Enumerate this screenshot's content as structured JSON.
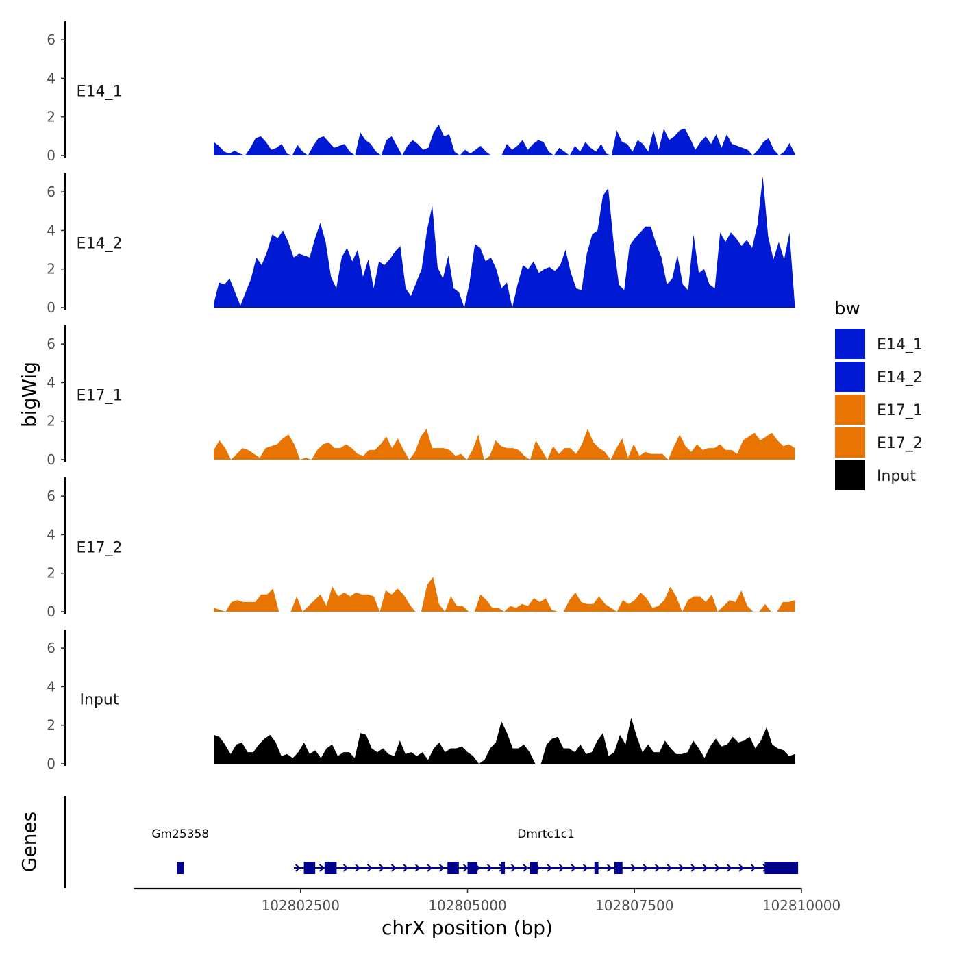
{
  "chart_data": {
    "type": "area",
    "xlabel": "chrX position (bp)",
    "ylabel": "bigWig",
    "genes_panel_label": "Genes",
    "x_range": [
      102800000,
      102810000
    ],
    "x_ticks": [
      102802500,
      102805000,
      102807500,
      102810000
    ],
    "x_tick_labels": [
      "102802500",
      "102805000",
      "102807500",
      "102810000"
    ],
    "y_range": [
      0,
      7
    ],
    "y_ticks": [
      0,
      2,
      4,
      6
    ],
    "y_tick_labels": [
      "0",
      "2",
      "4",
      "6"
    ],
    "legend": {
      "title": "bw",
      "items": [
        {
          "label": "E14_1",
          "color": "#0019D2"
        },
        {
          "label": "E14_2",
          "color": "#0019D2"
        },
        {
          "label": "E17_1",
          "color": "#E87502"
        },
        {
          "label": "E17_2",
          "color": "#E87502"
        },
        {
          "label": "Input",
          "color": "#000000"
        }
      ]
    },
    "tracks": [
      {
        "name": "E14_1",
        "color": "#0019D2",
        "values": [
          0.7,
          0.5,
          0.2,
          0.1,
          0.25,
          0.1,
          0.0,
          0.4,
          0.9,
          1.0,
          0.7,
          0.3,
          0.4,
          0.6,
          0.1,
          0.0,
          0.55,
          0.2,
          0.0,
          0.5,
          0.9,
          1.0,
          0.7,
          0.4,
          0.5,
          0.6,
          0.2,
          0.0,
          1.2,
          0.8,
          0.6,
          0.2,
          0.0,
          0.8,
          1.0,
          0.5,
          0.0,
          0.5,
          0.8,
          0.6,
          0.3,
          0.4,
          1.2,
          1.6,
          1.0,
          1.1,
          0.2,
          0.0,
          0.3,
          0.1,
          0.3,
          0.5,
          0.2,
          0.0,
          0.0,
          0.0,
          0.6,
          0.3,
          0.5,
          0.8,
          0.3,
          0.6,
          0.8,
          0.7,
          0.2,
          0.0,
          0.4,
          0.2,
          0.0,
          0.5,
          0.2,
          0.7,
          0.4,
          0.2,
          0.6,
          0.1,
          0.0,
          1.3,
          0.7,
          0.6,
          0.2,
          0.8,
          0.6,
          0.2,
          1.3,
          0.3,
          1.4,
          0.8,
          1.0,
          1.3,
          1.4,
          0.9,
          0.3,
          0.7,
          1.0,
          0.6,
          1.1,
          0.4,
          1.1,
          0.6,
          0.5,
          0.4,
          0.3,
          0.0,
          0.3,
          0.7,
          0.9,
          0.3,
          0.0,
          0.2,
          0.65,
          0.1
        ]
      },
      {
        "name": "E14_2",
        "color": "#0019D2",
        "values": [
          0.2,
          1.3,
          1.2,
          1.5,
          0.8,
          0.1,
          0.8,
          1.5,
          2.6,
          2.2,
          2.9,
          3.8,
          3.6,
          4.0,
          3.4,
          2.6,
          2.8,
          2.7,
          2.6,
          3.6,
          4.4,
          3.4,
          1.6,
          1.0,
          2.6,
          3.1,
          2.4,
          3.0,
          1.6,
          2.5,
          1.0,
          2.4,
          2.2,
          2.5,
          2.9,
          3.2,
          1.0,
          0.6,
          1.3,
          2.0,
          4.0,
          5.3,
          2.1,
          1.5,
          2.7,
          1.0,
          0.8,
          0.0,
          1.3,
          3.3,
          3.1,
          2.4,
          2.6,
          2.0,
          1.0,
          1.3,
          0.0,
          1.2,
          2.2,
          2.0,
          2.4,
          1.8,
          2.0,
          2.1,
          1.9,
          2.2,
          3.0,
          1.8,
          1.0,
          0.9,
          2.8,
          3.8,
          4.0,
          5.8,
          6.2,
          3.4,
          1.2,
          0.9,
          3.2,
          3.6,
          3.9,
          4.2,
          4.2,
          3.3,
          2.6,
          1.2,
          1.5,
          2.7,
          1.2,
          0.9,
          3.8,
          1.8,
          2.0,
          1.2,
          1.0,
          3.9,
          3.4,
          3.9,
          3.6,
          3.2,
          3.5,
          3.1,
          4.3,
          6.8,
          3.7,
          2.5,
          3.4,
          2.5,
          3.9,
          0.1
        ]
      },
      {
        "name": "E17_1",
        "color": "#E87502",
        "values": [
          0.5,
          1.0,
          0.6,
          0.0,
          0.3,
          0.6,
          0.5,
          0.3,
          0.1,
          0.6,
          0.7,
          0.8,
          1.1,
          1.3,
          0.8,
          0.0,
          0.1,
          0.0,
          0.5,
          0.8,
          0.9,
          0.6,
          0.6,
          0.8,
          0.6,
          0.3,
          0.2,
          0.5,
          0.5,
          0.8,
          1.2,
          0.6,
          1.1,
          0.5,
          0.0,
          0.4,
          1.2,
          1.6,
          0.6,
          0.6,
          0.6,
          0.5,
          0.2,
          0.3,
          0.0,
          0.5,
          1.3,
          0.0,
          0.2,
          1.0,
          0.7,
          0.6,
          0.6,
          0.5,
          0.2,
          0.0,
          1.0,
          0.5,
          0.0,
          0.7,
          0.3,
          0.6,
          0.6,
          0.3,
          0.8,
          1.6,
          0.9,
          0.6,
          0.4,
          0.0,
          0.6,
          1.1,
          0.1,
          0.8,
          0.2,
          0.4,
          0.3,
          0.3,
          0.3,
          0.0,
          0.7,
          1.3,
          0.7,
          0.4,
          0.8,
          0.5,
          0.6,
          0.6,
          0.8,
          0.5,
          0.5,
          0.3,
          1.0,
          1.2,
          1.4,
          1.0,
          1.2,
          1.4,
          1.0,
          0.7,
          0.8,
          0.6
        ]
      },
      {
        "name": "E17_2",
        "color": "#E87502",
        "values": [
          0.2,
          0.1,
          0.0,
          0.5,
          0.6,
          0.5,
          0.5,
          0.5,
          0.9,
          0.9,
          1.2,
          0.0,
          0.0,
          0.0,
          0.8,
          0.0,
          0.3,
          0.6,
          0.9,
          0.3,
          1.3,
          0.8,
          1.0,
          0.8,
          1.0,
          0.9,
          0.9,
          0.8,
          0.0,
          1.1,
          0.9,
          1.2,
          0.9,
          0.4,
          0.0,
          0.0,
          1.4,
          1.8,
          0.4,
          0.0,
          0.8,
          0.3,
          0.3,
          0.0,
          0.0,
          0.9,
          0.6,
          0.2,
          0.2,
          0.0,
          0.3,
          0.2,
          0.4,
          0.3,
          0.7,
          0.5,
          0.7,
          0.1,
          0.0,
          0.0,
          0.6,
          1.0,
          0.5,
          0.4,
          0.4,
          0.8,
          0.4,
          0.2,
          0.0,
          0.6,
          0.4,
          0.6,
          1.0,
          0.7,
          0.2,
          0.3,
          0.6,
          1.3,
          0.8,
          0.0,
          0.6,
          0.8,
          0.8,
          0.5,
          0.9,
          0.0,
          0.3,
          0.6,
          0.5,
          1.1,
          0.3,
          0.0,
          0.0,
          0.4,
          0.0,
          0.0,
          0.5,
          0.5,
          0.6
        ]
      },
      {
        "name": "Input",
        "color": "#000000",
        "values": [
          1.5,
          1.4,
          1.0,
          0.5,
          1.0,
          1.1,
          0.6,
          0.6,
          1.0,
          1.3,
          1.5,
          1.1,
          0.4,
          0.5,
          0.3,
          0.6,
          1.1,
          0.5,
          0.7,
          0.3,
          0.8,
          1.0,
          0.4,
          0.6,
          0.6,
          0.3,
          1.6,
          1.5,
          0.8,
          0.6,
          0.8,
          0.5,
          0.4,
          1.2,
          0.5,
          0.6,
          0.4,
          0.6,
          0.2,
          0.8,
          1.1,
          0.6,
          0.8,
          0.8,
          0.9,
          0.6,
          0.4,
          0.0,
          0.2,
          0.8,
          1.1,
          2.2,
          1.6,
          0.8,
          0.8,
          1.0,
          0.6,
          0.0,
          0.0,
          1.0,
          1.3,
          1.4,
          0.8,
          0.8,
          0.6,
          1.0,
          0.5,
          0.6,
          1.2,
          1.6,
          0.4,
          0.6,
          1.5,
          1.0,
          2.4,
          1.4,
          0.6,
          1.0,
          0.6,
          0.6,
          1.2,
          0.8,
          0.5,
          0.5,
          0.6,
          1.2,
          0.8,
          0.3,
          0.9,
          1.3,
          0.9,
          1.0,
          1.4,
          1.1,
          1.2,
          1.4,
          0.8,
          1.2,
          1.9,
          1.0,
          0.8,
          0.7,
          0.4,
          0.5
        ]
      }
    ],
    "genes": [
      {
        "name": "Gm25358",
        "start": 102800650,
        "end": 102800750,
        "strand": "+",
        "exons": [
          [
            102800650,
            102800750
          ]
        ]
      },
      {
        "name": "Dmrtc1c1",
        "start": 102802400,
        "end": 102809950,
        "strand": "+",
        "exons": [
          [
            102802550,
            102802720
          ],
          [
            102802860,
            102803040
          ],
          [
            102804700,
            102804870
          ],
          [
            102805000,
            102805150
          ],
          [
            102805500,
            102805560
          ],
          [
            102805930,
            102806050
          ],
          [
            102806900,
            102806960
          ],
          [
            102807200,
            102807320
          ],
          [
            102809450,
            102809950
          ]
        ]
      }
    ]
  }
}
